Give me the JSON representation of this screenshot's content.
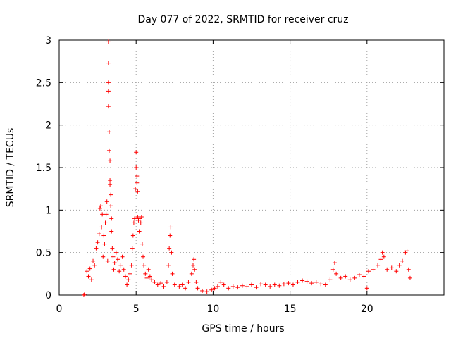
{
  "chart_data": {
    "type": "scatter",
    "title": "Day 077 of 2022, SRMTID for receiver cruz",
    "xlabel": "GPS time / hours",
    "ylabel": "SRMTID / TECUs",
    "xlim": [
      0,
      25
    ],
    "ylim": [
      0,
      3
    ],
    "grid": true,
    "marker": "+",
    "color": "#ff0000",
    "x_ticks": [
      {
        "value": 0,
        "label": "0"
      },
      {
        "value": 5,
        "label": "5"
      },
      {
        "value": 10,
        "label": "10"
      },
      {
        "value": 15,
        "label": "15"
      },
      {
        "value": 20,
        "label": "20"
      }
    ],
    "y_ticks": [
      {
        "value": 0,
        "label": "0"
      },
      {
        "value": 0.5,
        "label": "0.5"
      },
      {
        "value": 1,
        "label": "1"
      },
      {
        "value": 1.5,
        "label": "1.5"
      },
      {
        "value": 2,
        "label": "2"
      },
      {
        "value": 2.5,
        "label": "2.5"
      },
      {
        "value": 3,
        "label": "3"
      }
    ],
    "series": [
      {
        "name": "SRMTID",
        "points": [
          [
            1.6,
            0.0
          ],
          [
            1.65,
            0.01
          ],
          [
            1.8,
            0.28
          ],
          [
            1.9,
            0.22
          ],
          [
            2.0,
            0.31
          ],
          [
            2.1,
            0.18
          ],
          [
            2.2,
            0.4
          ],
          [
            2.3,
            0.35
          ],
          [
            2.4,
            0.55
          ],
          [
            2.5,
            0.62
          ],
          [
            2.6,
            0.72
          ],
          [
            2.65,
            1.02
          ],
          [
            2.7,
            1.05
          ],
          [
            2.75,
            0.8
          ],
          [
            2.8,
            0.95
          ],
          [
            2.85,
            0.45
          ],
          [
            2.9,
            0.7
          ],
          [
            2.95,
            0.6
          ],
          [
            3.0,
            0.85
          ],
          [
            3.05,
            0.95
          ],
          [
            3.1,
            1.1
          ],
          [
            3.15,
            0.4
          ],
          [
            3.2,
            2.98
          ],
          [
            3.2,
            2.73
          ],
          [
            3.2,
            2.5
          ],
          [
            3.2,
            2.4
          ],
          [
            3.2,
            2.22
          ],
          [
            3.25,
            1.92
          ],
          [
            3.25,
            1.7
          ],
          [
            3.3,
            1.58
          ],
          [
            3.3,
            1.35
          ],
          [
            3.3,
            1.3
          ],
          [
            3.35,
            1.18
          ],
          [
            3.35,
            1.05
          ],
          [
            3.4,
            0.9
          ],
          [
            3.4,
            0.75
          ],
          [
            3.45,
            0.55
          ],
          [
            3.5,
            0.45
          ],
          [
            3.55,
            0.3
          ],
          [
            3.6,
            0.38
          ],
          [
            3.7,
            0.5
          ],
          [
            3.8,
            0.42
          ],
          [
            3.9,
            0.28
          ],
          [
            4.0,
            0.35
          ],
          [
            4.1,
            0.45
          ],
          [
            4.2,
            0.3
          ],
          [
            4.3,
            0.22
          ],
          [
            4.4,
            0.12
          ],
          [
            4.5,
            0.18
          ],
          [
            4.6,
            0.25
          ],
          [
            4.7,
            0.35
          ],
          [
            4.75,
            0.55
          ],
          [
            4.8,
            0.7
          ],
          [
            4.85,
            0.85
          ],
          [
            4.9,
            0.9
          ],
          [
            4.95,
            1.25
          ],
          [
            5.0,
            1.68
          ],
          [
            5.0,
            1.5
          ],
          [
            5.05,
            1.4
          ],
          [
            5.05,
            1.32
          ],
          [
            5.1,
            1.22
          ],
          [
            5.1,
            0.92
          ],
          [
            5.15,
            0.88
          ],
          [
            5.2,
            0.75
          ],
          [
            5.25,
            0.9
          ],
          [
            5.3,
            0.85
          ],
          [
            5.35,
            0.92
          ],
          [
            5.4,
            0.6
          ],
          [
            5.45,
            0.45
          ],
          [
            5.5,
            0.35
          ],
          [
            5.6,
            0.25
          ],
          [
            5.7,
            0.2
          ],
          [
            5.8,
            0.3
          ],
          [
            5.9,
            0.22
          ],
          [
            6.0,
            0.18
          ],
          [
            6.2,
            0.15
          ],
          [
            6.4,
            0.12
          ],
          [
            6.6,
            0.14
          ],
          [
            6.8,
            0.1
          ],
          [
            7.0,
            0.15
          ],
          [
            7.1,
            0.35
          ],
          [
            7.15,
            0.55
          ],
          [
            7.2,
            0.7
          ],
          [
            7.25,
            0.8
          ],
          [
            7.3,
            0.5
          ],
          [
            7.35,
            0.25
          ],
          [
            7.5,
            0.12
          ],
          [
            7.8,
            0.1
          ],
          [
            8.0,
            0.12
          ],
          [
            8.2,
            0.08
          ],
          [
            8.4,
            0.15
          ],
          [
            8.6,
            0.25
          ],
          [
            8.7,
            0.35
          ],
          [
            8.75,
            0.42
          ],
          [
            8.8,
            0.3
          ],
          [
            8.9,
            0.15
          ],
          [
            9.0,
            0.08
          ],
          [
            9.3,
            0.05
          ],
          [
            9.6,
            0.04
          ],
          [
            9.9,
            0.06
          ],
          [
            10.1,
            0.08
          ],
          [
            10.3,
            0.1
          ],
          [
            10.5,
            0.15
          ],
          [
            10.7,
            0.12
          ],
          [
            11.0,
            0.08
          ],
          [
            11.3,
            0.1
          ],
          [
            11.6,
            0.09
          ],
          [
            11.9,
            0.11
          ],
          [
            12.2,
            0.1
          ],
          [
            12.5,
            0.12
          ],
          [
            12.8,
            0.09
          ],
          [
            13.1,
            0.13
          ],
          [
            13.4,
            0.12
          ],
          [
            13.7,
            0.1
          ],
          [
            14.0,
            0.12
          ],
          [
            14.3,
            0.11
          ],
          [
            14.6,
            0.13
          ],
          [
            14.9,
            0.14
          ],
          [
            15.2,
            0.12
          ],
          [
            15.5,
            0.15
          ],
          [
            15.8,
            0.17
          ],
          [
            16.1,
            0.16
          ],
          [
            16.4,
            0.14
          ],
          [
            16.7,
            0.15
          ],
          [
            17.0,
            0.13
          ],
          [
            17.3,
            0.12
          ],
          [
            17.6,
            0.18
          ],
          [
            17.8,
            0.3
          ],
          [
            17.9,
            0.38
          ],
          [
            18.0,
            0.25
          ],
          [
            18.3,
            0.2
          ],
          [
            18.6,
            0.22
          ],
          [
            18.9,
            0.18
          ],
          [
            19.2,
            0.2
          ],
          [
            19.5,
            0.24
          ],
          [
            19.8,
            0.22
          ],
          [
            20.0,
            0.08
          ],
          [
            20.1,
            0.28
          ],
          [
            20.4,
            0.3
          ],
          [
            20.7,
            0.35
          ],
          [
            20.9,
            0.42
          ],
          [
            21.0,
            0.5
          ],
          [
            21.1,
            0.45
          ],
          [
            21.3,
            0.3
          ],
          [
            21.6,
            0.32
          ],
          [
            21.9,
            0.28
          ],
          [
            22.1,
            0.35
          ],
          [
            22.3,
            0.4
          ],
          [
            22.5,
            0.5
          ],
          [
            22.6,
            0.52
          ],
          [
            22.7,
            0.3
          ],
          [
            22.8,
            0.2
          ]
        ]
      }
    ]
  }
}
